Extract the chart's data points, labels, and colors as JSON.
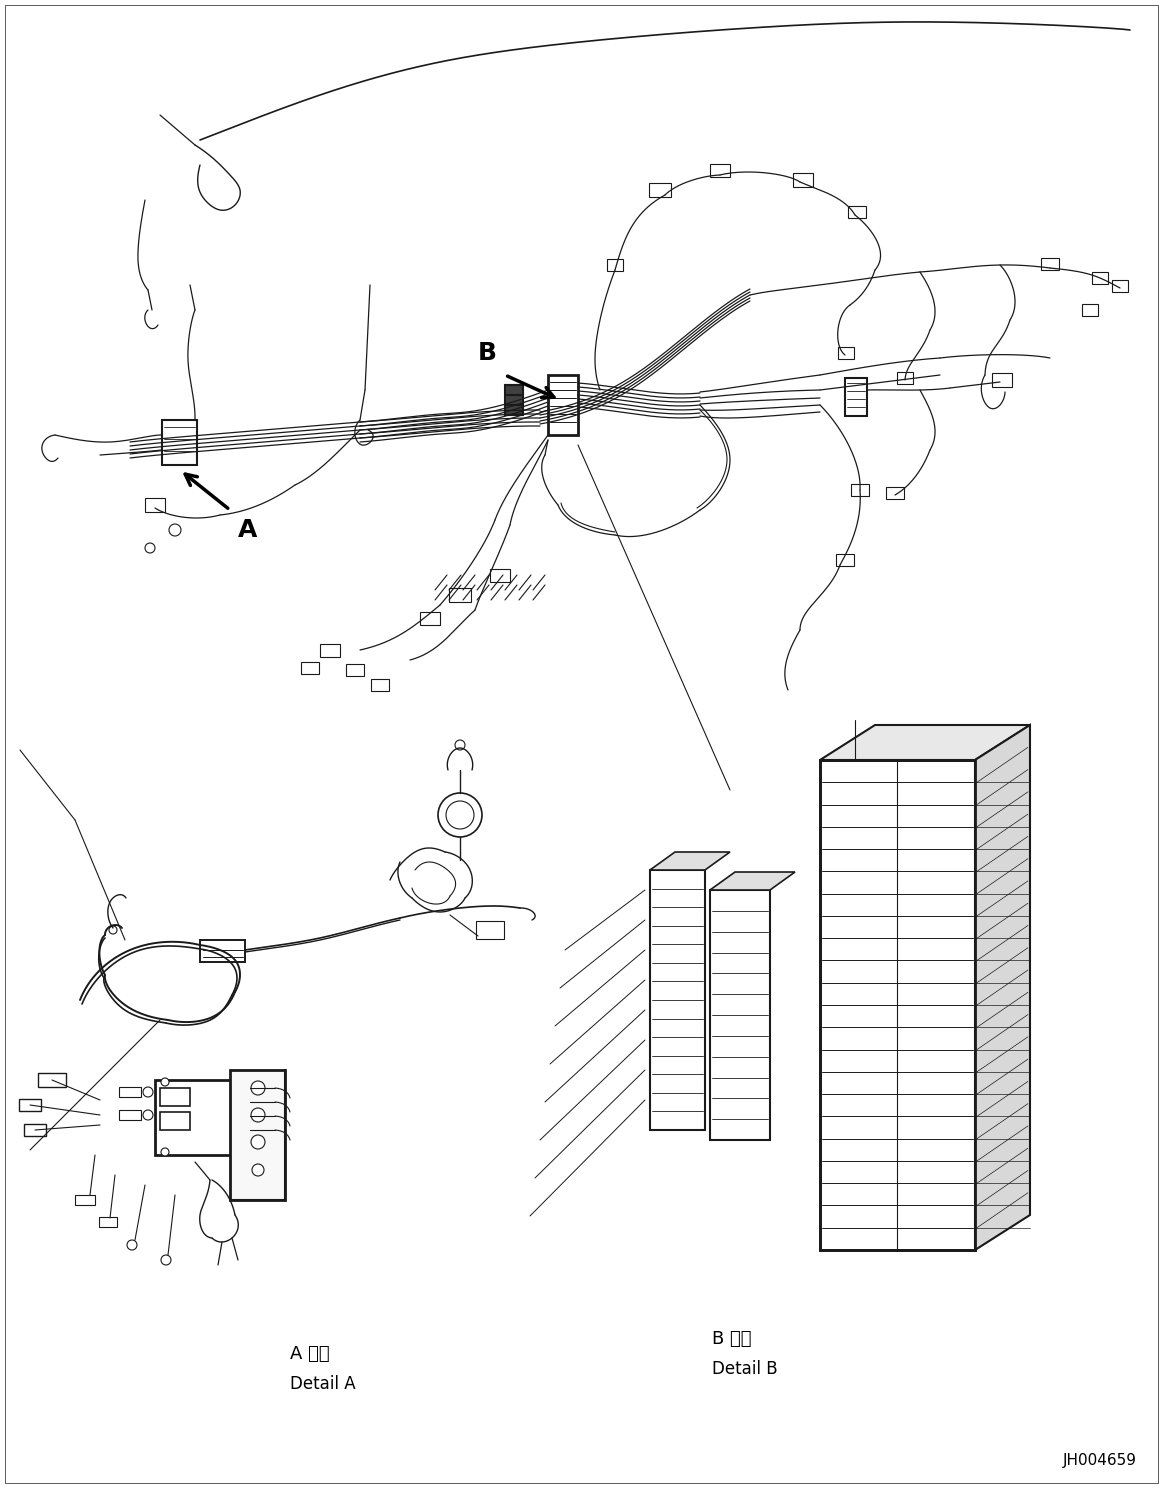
{
  "figure_width": 11.63,
  "figure_height": 14.88,
  "dpi": 100,
  "bg_color": "#ffffff",
  "line_color": "#1a1a1a",
  "part_number": "JH004659",
  "label_A": "A",
  "label_B": "B",
  "detail_A_jp": "A 詳細",
  "detail_A_en": "Detail A",
  "detail_B_jp": "B 詳細",
  "detail_B_en": "Detail B"
}
